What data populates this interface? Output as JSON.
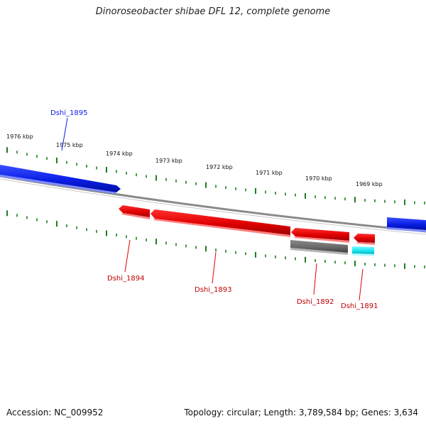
{
  "title": "Dinoroseobacter shibae DFL 12, complete genome",
  "footer": {
    "accession": "Accession: NC_009952",
    "summary": "Topology: circular; Length: 3,789,584 bp; Genes: 3,634"
  },
  "colors": {
    "forward_gene": "#0a1ee6",
    "reverse_gene": "#e00000",
    "gray_feature": "#6a6a6a",
    "cyan_feature": "#19e6f0",
    "ruler_ticks": "#1e7d1e",
    "backbone": "#8a8a8a"
  },
  "ruler": {
    "unit": "kbp",
    "labels": [
      "1976 kbp",
      "1975 kbp",
      "1974 kbp",
      "1973 kbp",
      "1972 kbp",
      "1971 kbp",
      "1970 kbp",
      "1969 kbp"
    ]
  },
  "genes": [
    {
      "name": "Dshi_1895",
      "strand": "forward"
    },
    {
      "name": "Dshi_1894",
      "strand": "reverse"
    },
    {
      "name": "Dshi_1893",
      "strand": "reverse"
    },
    {
      "name": "Dshi_1892",
      "strand": "reverse"
    },
    {
      "name": "Dshi_1891",
      "strand": "reverse"
    }
  ]
}
